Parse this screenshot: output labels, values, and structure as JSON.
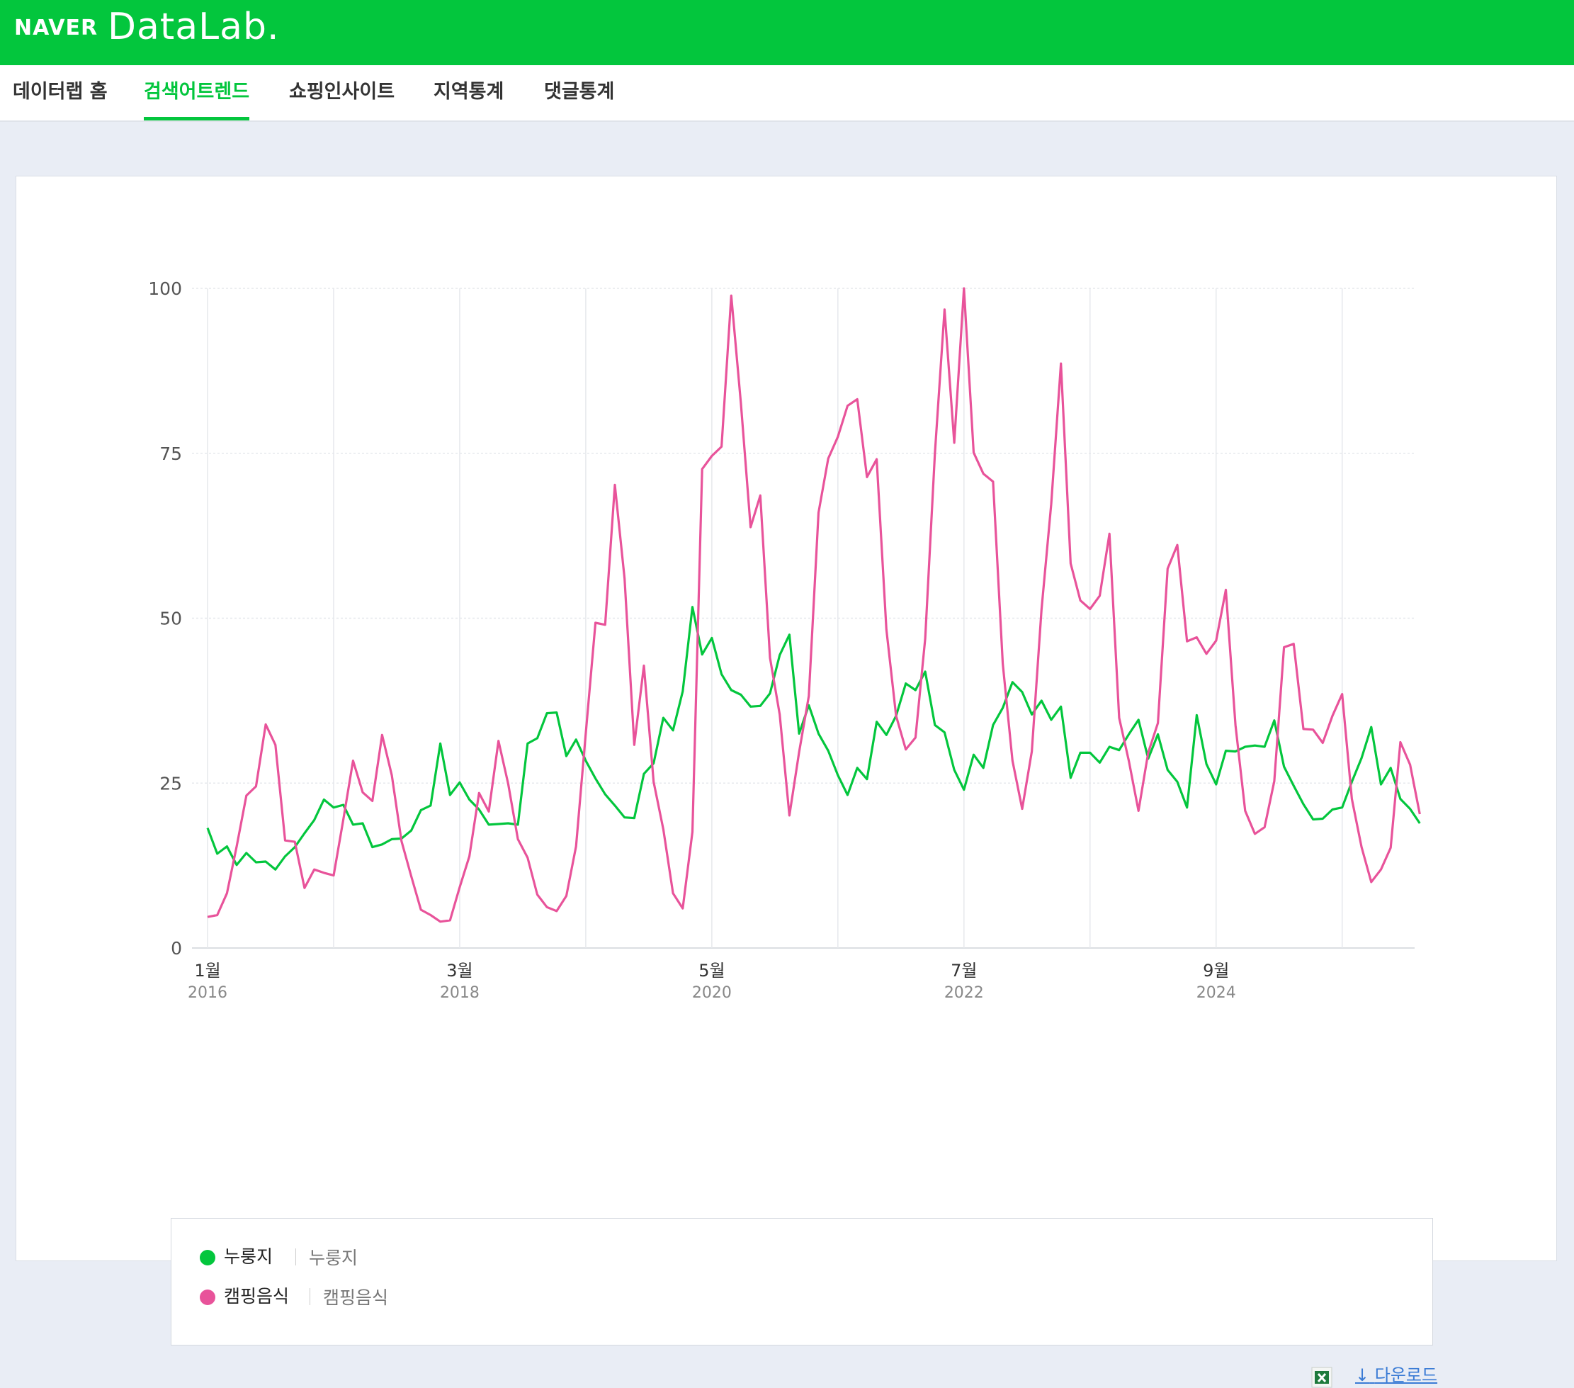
{
  "header": {
    "brand_naver": "NAVER",
    "brand_datalab": "DataLab."
  },
  "nav": {
    "items": [
      {
        "label": "데이터랩 홈",
        "active": false
      },
      {
        "label": "검색어트렌드",
        "active": true
      },
      {
        "label": "쇼핑인사이트",
        "active": false
      },
      {
        "label": "지역통계",
        "active": false
      },
      {
        "label": "댓글통계",
        "active": false
      }
    ]
  },
  "colors": {
    "brand": "#03c63d",
    "series1": "#03c63d",
    "series2": "#e8539a"
  },
  "chart_data": {
    "type": "line",
    "ylim": [
      0,
      100
    ],
    "yticks": [
      0,
      25,
      50,
      75,
      100
    ],
    "xticks": [
      {
        "month": "1월",
        "year": "2016",
        "x": "2016-01"
      },
      {
        "month": "3월",
        "year": "2018",
        "x": "2018-03"
      },
      {
        "month": "5월",
        "year": "2020",
        "x": "2020-05"
      },
      {
        "month": "7월",
        "year": "2022",
        "x": "2022-07"
      },
      {
        "month": "9월",
        "year": "2024",
        "x": "2024-09"
      }
    ],
    "x_start": "2016-01",
    "x_end": "2026-03",
    "grid": true,
    "legend": "bottom",
    "series": [
      {
        "name": "누룽지",
        "subname": "누룽지",
        "color": "#03c63d",
        "values": [
          18.2,
          14.3,
          15.4,
          12.6,
          14.4,
          13.0,
          13.1,
          11.9,
          13.9,
          15.3,
          17.4,
          19.4,
          22.5,
          21.3,
          21.7,
          18.7,
          18.9,
          15.3,
          15.7,
          16.5,
          16.6,
          17.8,
          20.9,
          21.6,
          31.0,
          23.2,
          25.1,
          22.5,
          21.0,
          18.7,
          18.8,
          18.9,
          18.7,
          31.0,
          31.8,
          35.6,
          35.7,
          29.1,
          31.6,
          28.4,
          25.7,
          23.3,
          21.6,
          19.8,
          19.7,
          26.4,
          28.0,
          34.9,
          33.0,
          38.9,
          51.7,
          44.5,
          47.0,
          41.5,
          39.1,
          38.4,
          36.6,
          36.7,
          38.6,
          44.4,
          47.5,
          32.5,
          36.8,
          32.5,
          29.9,
          26.2,
          23.2,
          27.3,
          25.6,
          34.3,
          32.3,
          35.2,
          40.1,
          39.1,
          41.9,
          33.8,
          32.7,
          27.0,
          24.0,
          29.3,
          27.3,
          33.8,
          36.4,
          40.3,
          38.8,
          35.4,
          37.5,
          34.6,
          36.6,
          25.8,
          29.6,
          29.6,
          28.1,
          30.5,
          30.0,
          32.4,
          34.6,
          28.7,
          32.4,
          27.0,
          25.2,
          21.3,
          35.3,
          27.9,
          24.8,
          29.9,
          29.8,
          30.5,
          30.7,
          30.5,
          34.5,
          27.5,
          24.6,
          21.8,
          19.5,
          19.6,
          21.0,
          21.3,
          25.2,
          28.8,
          33.5,
          24.8,
          27.3,
          22.6,
          21.1,
          18.9
        ]
      },
      {
        "name": "캠핑음식",
        "subname": "캠핑음식",
        "color": "#e8539a",
        "values": [
          4.7,
          5.0,
          8.3,
          15.4,
          23.1,
          24.5,
          33.9,
          30.8,
          16.3,
          16.1,
          9.1,
          11.9,
          11.4,
          11.0,
          19.5,
          28.4,
          23.6,
          22.3,
          32.3,
          26.2,
          16.2,
          10.9,
          5.8,
          5.0,
          4.0,
          4.2,
          9.2,
          13.9,
          23.5,
          20.7,
          31.4,
          24.9,
          16.5,
          13.7,
          8.1,
          6.2,
          5.6,
          7.9,
          15.4,
          32.5,
          49.3,
          49.0,
          70.2,
          56.0,
          30.8,
          42.8,
          25.2,
          18.0,
          8.3,
          6.0,
          17.6,
          72.6,
          74.6,
          76.0,
          98.9,
          82.6,
          63.8,
          68.6,
          44.0,
          35.4,
          20.1,
          29.7,
          38.2,
          66.0,
          74.2,
          77.5,
          82.2,
          83.2,
          71.4,
          74.1,
          48.3,
          35.2,
          30.1,
          31.9,
          46.9,
          75.0,
          96.8,
          76.6,
          100.0,
          75.1,
          71.9,
          70.7,
          43.1,
          28.4,
          21.1,
          29.8,
          51.3,
          67.3,
          88.6,
          58.3,
          52.7,
          51.4,
          53.4,
          62.8,
          34.9,
          28.4,
          20.8,
          29.6,
          34.1,
          57.5,
          61.1,
          46.5,
          47.1,
          44.6,
          46.6,
          54.3,
          33.8,
          20.8,
          17.3,
          18.3,
          25.3,
          45.6,
          46.1,
          33.2,
          33.1,
          31.1,
          35.2,
          38.5,
          22.6,
          15.3,
          10.0,
          11.9,
          15.2,
          31.2,
          27.8,
          20.3
        ]
      }
    ]
  },
  "download": {
    "label": "다운로드"
  }
}
